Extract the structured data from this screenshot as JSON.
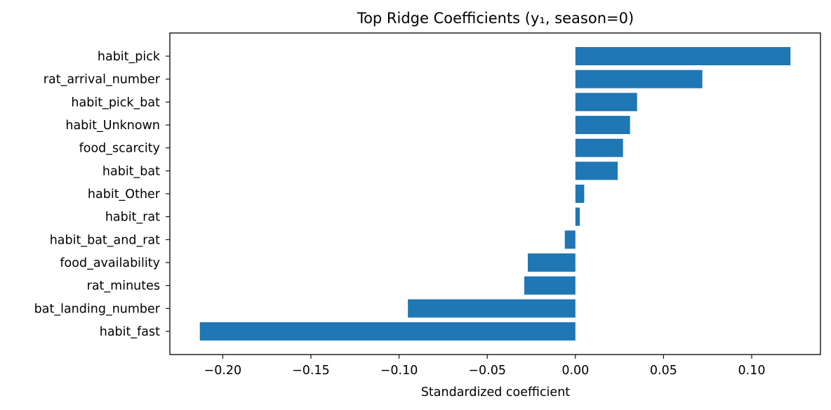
{
  "chart_data": {
    "type": "bar",
    "orientation": "horizontal",
    "title": "Top Ridge Coefficients (y₁, season=0)",
    "xlabel": "Standardized coefficient",
    "ylabel": "",
    "categories": [
      "habit_pick",
      "rat_arrival_number",
      "habit_pick_bat",
      "habit_Unknown",
      "food_scarcity",
      "habit_bat",
      "habit_Other",
      "habit_rat",
      "habit_bat_and_rat",
      "food_availability",
      "rat_minutes",
      "bat_landing_number",
      "habit_fast"
    ],
    "values": [
      0.122,
      0.072,
      0.035,
      0.031,
      0.027,
      0.024,
      0.005,
      0.0025,
      -0.006,
      -0.027,
      -0.029,
      -0.095,
      -0.213
    ],
    "xlim": [
      -0.23,
      0.139
    ],
    "xticks": [
      -0.2,
      -0.15,
      -0.1,
      -0.05,
      0.0,
      0.05,
      0.1
    ],
    "xtick_labels": [
      "−0.20",
      "−0.15",
      "−0.10",
      "−0.05",
      "0.00",
      "0.05",
      "0.10"
    ],
    "bar_color": "#1f77b4",
    "grid": false,
    "legend": "none"
  }
}
